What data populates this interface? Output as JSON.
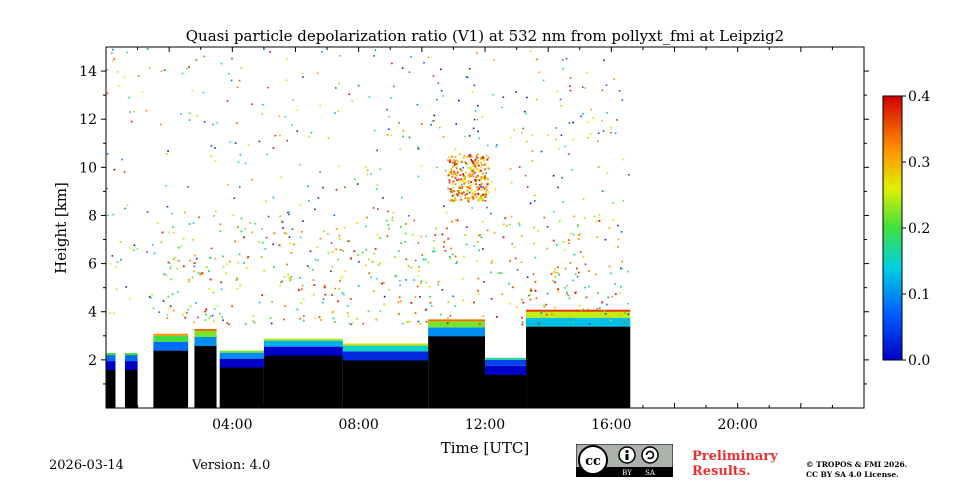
{
  "chart_data": {
    "type": "heatmap",
    "title": "Quasi particle depolarization ratio (V1) at 532 nm from pollyxt_fmi at Leipzig2",
    "xlabel": "Time [UTC]",
    "ylabel": "Height [km]",
    "x_ticks": [
      "04:00",
      "08:00",
      "12:00",
      "16:00",
      "20:00"
    ],
    "x_tick_hours": [
      4,
      8,
      12,
      16,
      20
    ],
    "xlim_hours": [
      0,
      24
    ],
    "y_ticks": [
      "2",
      "4",
      "6",
      "8",
      "10",
      "12",
      "14"
    ],
    "y_tick_values": [
      2,
      4,
      6,
      8,
      10,
      12,
      14
    ],
    "ylim": [
      0,
      15
    ],
    "colorbar": {
      "ticks": [
        "0.0",
        "0.1",
        "0.2",
        "0.3",
        "0.4"
      ],
      "tick_values": [
        0.0,
        0.1,
        0.2,
        0.3,
        0.4
      ],
      "range": [
        0.0,
        0.4
      ]
    },
    "cloud_layers": [
      {
        "start_h": 0.0,
        "end_h": 0.3,
        "top_km": 2.2,
        "value": 0.08
      },
      {
        "start_h": 0.6,
        "end_h": 1.0,
        "top_km": 2.2,
        "value": 0.08
      },
      {
        "start_h": 1.5,
        "end_h": 2.6,
        "top_km": 3.0,
        "value": 0.2
      },
      {
        "start_h": 2.8,
        "end_h": 3.5,
        "top_km": 3.2,
        "value": 0.22
      },
      {
        "start_h": 3.6,
        "end_h": 5.0,
        "top_km": 2.3,
        "value": 0.1
      },
      {
        "start_h": 5.0,
        "end_h": 7.5,
        "top_km": 2.8,
        "value": 0.12
      },
      {
        "start_h": 7.5,
        "end_h": 10.2,
        "top_km": 2.6,
        "value": 0.15
      },
      {
        "start_h": 10.2,
        "end_h": 12.0,
        "top_km": 3.6,
        "value": 0.22
      },
      {
        "start_h": 12.0,
        "end_h": 13.3,
        "top_km": 2.0,
        "value": 0.05
      },
      {
        "start_h": 13.3,
        "end_h": 16.6,
        "top_km": 4.0,
        "value": 0.25
      }
    ]
  },
  "footer": {
    "date": "2026-03-14",
    "version": "Version: 4.0",
    "preliminary_line1": "Preliminary",
    "preliminary_line2": "Results.",
    "copyright_line1": "© TROPOS & FMI 2026.",
    "copyright_line2": "CC BY SA 4.0 License.",
    "badge_left": "BY",
    "badge_right": "SA"
  }
}
